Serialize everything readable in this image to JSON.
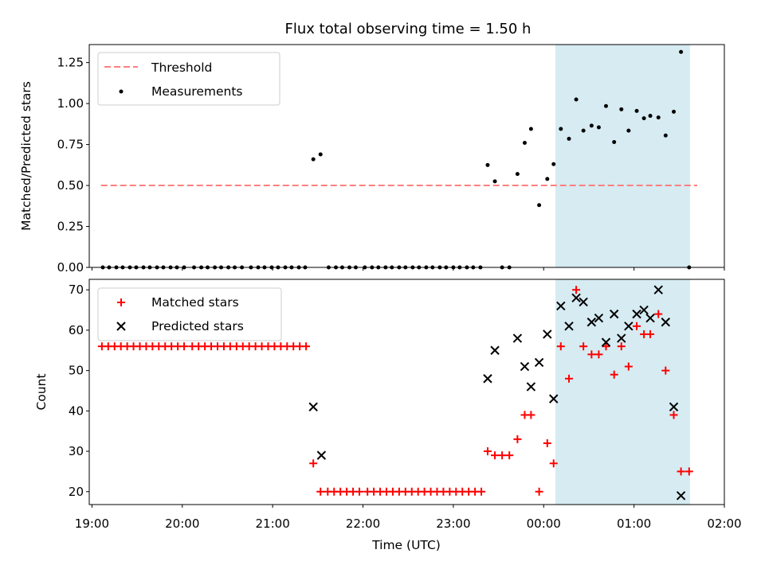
{
  "chart_data": {
    "title": "Flux total observing time = 1.50 h",
    "shaded_region": {
      "x_start": 0.13,
      "x_end": 1.62,
      "color": "#add8e6"
    },
    "colors": {
      "threshold": "#ff7f7f",
      "measurement": "#000000",
      "matched": "#ff0000",
      "predicted": "#000000"
    },
    "x_axis": {
      "label": "Time (UTC)",
      "range": [
        -5.03,
        2.0
      ],
      "ticks": [
        {
          "value": -5,
          "label": "19:00"
        },
        {
          "value": -4,
          "label": "20:00"
        },
        {
          "value": -3,
          "label": "21:00"
        },
        {
          "value": -2,
          "label": "22:00"
        },
        {
          "value": -1,
          "label": "23:00"
        },
        {
          "value": 0,
          "label": "00:00"
        },
        {
          "value": 1,
          "label": "01:00"
        },
        {
          "value": 2,
          "label": "02:00"
        }
      ]
    },
    "top": {
      "type": "scatter",
      "ylabel": "Matched/Predicted stars",
      "ylim": [
        0,
        1.36
      ],
      "yticks": [
        "0.00",
        "0.25",
        "0.50",
        "0.75",
        "1.00",
        "1.25"
      ],
      "threshold": {
        "label": "Threshold",
        "y": 0.5,
        "x_start": -4.9,
        "x_end": 1.7
      },
      "measurements_label": "Measurements",
      "measurements": [
        [
          -4.88,
          0
        ],
        [
          -4.81,
          0
        ],
        [
          -4.73,
          0
        ],
        [
          -4.66,
          0
        ],
        [
          -4.58,
          0
        ],
        [
          -4.51,
          0
        ],
        [
          -4.43,
          0
        ],
        [
          -4.36,
          0
        ],
        [
          -4.28,
          0
        ],
        [
          -4.21,
          0
        ],
        [
          -4.13,
          0
        ],
        [
          -4.06,
          0
        ],
        [
          -3.98,
          0
        ],
        [
          -3.87,
          0
        ],
        [
          -3.79,
          0
        ],
        [
          -3.72,
          0
        ],
        [
          -3.64,
          0
        ],
        [
          -3.57,
          0
        ],
        [
          -3.49,
          0
        ],
        [
          -3.42,
          0
        ],
        [
          -3.34,
          0
        ],
        [
          -3.24,
          0
        ],
        [
          -3.16,
          0
        ],
        [
          -3.09,
          0
        ],
        [
          -3.01,
          0
        ],
        [
          -2.94,
          0
        ],
        [
          -2.86,
          0
        ],
        [
          -2.79,
          0
        ],
        [
          -2.71,
          0
        ],
        [
          -2.64,
          0
        ],
        [
          -2.55,
          0.66
        ],
        [
          -2.47,
          0.69
        ],
        [
          -2.38,
          0
        ],
        [
          -2.3,
          0
        ],
        [
          -2.23,
          0
        ],
        [
          -2.15,
          0
        ],
        [
          -2.08,
          0
        ],
        [
          -1.98,
          0
        ],
        [
          -1.9,
          0
        ],
        [
          -1.83,
          0
        ],
        [
          -1.75,
          0
        ],
        [
          -1.68,
          0
        ],
        [
          -1.6,
          0
        ],
        [
          -1.53,
          0
        ],
        [
          -1.45,
          0
        ],
        [
          -1.38,
          0
        ],
        [
          -1.3,
          0
        ],
        [
          -1.23,
          0
        ],
        [
          -1.15,
          0
        ],
        [
          -1.08,
          0
        ],
        [
          -1.0,
          0
        ],
        [
          -0.93,
          0
        ],
        [
          -0.85,
          0
        ],
        [
          -0.78,
          0
        ],
        [
          -0.7,
          0
        ],
        [
          -0.62,
          0.625
        ],
        [
          -0.54,
          0.525
        ],
        [
          -0.46,
          0
        ],
        [
          -0.38,
          0
        ],
        [
          -0.29,
          0.57
        ],
        [
          -0.21,
          0.76
        ],
        [
          -0.14,
          0.845
        ],
        [
          -0.05,
          0.38
        ],
        [
          0.04,
          0.54
        ],
        [
          0.11,
          0.63
        ],
        [
          0.19,
          0.845
        ],
        [
          0.28,
          0.785
        ],
        [
          0.36,
          1.025
        ],
        [
          0.44,
          0.835
        ],
        [
          0.53,
          0.865
        ],
        [
          0.61,
          0.855
        ],
        [
          0.69,
          0.985
        ],
        [
          0.78,
          0.765
        ],
        [
          0.86,
          0.965
        ],
        [
          0.94,
          0.835
        ],
        [
          1.03,
          0.955
        ],
        [
          1.11,
          0.91
        ],
        [
          1.18,
          0.925
        ],
        [
          1.27,
          0.915
        ],
        [
          1.35,
          0.805
        ],
        [
          1.44,
          0.95
        ],
        [
          1.52,
          1.315
        ],
        [
          1.61,
          0
        ]
      ]
    },
    "bottom": {
      "type": "scatter",
      "ylabel": "Count",
      "ylim": [
        16.8,
        72.6
      ],
      "yticks": [
        "20",
        "30",
        "40",
        "50",
        "60",
        "70"
      ],
      "matched_label": "Matched stars",
      "predicted_label": "Predicted stars",
      "matched": [
        [
          -4.89,
          56
        ],
        [
          -4.82,
          56
        ],
        [
          -4.75,
          56
        ],
        [
          -4.68,
          56
        ],
        [
          -4.61,
          56
        ],
        [
          -4.54,
          56
        ],
        [
          -4.47,
          56
        ],
        [
          -4.4,
          56
        ],
        [
          -4.33,
          56
        ],
        [
          -4.26,
          56
        ],
        [
          -4.19,
          56
        ],
        [
          -4.12,
          56
        ],
        [
          -4.05,
          56
        ],
        [
          -3.98,
          56
        ],
        [
          -3.89,
          56
        ],
        [
          -3.82,
          56
        ],
        [
          -3.75,
          56
        ],
        [
          -3.68,
          56
        ],
        [
          -3.61,
          56
        ],
        [
          -3.54,
          56
        ],
        [
          -3.47,
          56
        ],
        [
          -3.4,
          56
        ],
        [
          -3.33,
          56
        ],
        [
          -3.26,
          56
        ],
        [
          -3.19,
          56
        ],
        [
          -3.12,
          56
        ],
        [
          -3.05,
          56
        ],
        [
          -2.98,
          56
        ],
        [
          -2.91,
          56
        ],
        [
          -2.84,
          56
        ],
        [
          -2.77,
          56
        ],
        [
          -2.7,
          56
        ],
        [
          -2.63,
          56
        ],
        [
          -2.55,
          27
        ],
        [
          -2.47,
          20
        ],
        [
          -2.39,
          20
        ],
        [
          -2.32,
          20
        ],
        [
          -2.25,
          20
        ],
        [
          -2.18,
          20
        ],
        [
          -2.11,
          20
        ],
        [
          -2.04,
          20
        ],
        [
          -1.95,
          20
        ],
        [
          -1.88,
          20
        ],
        [
          -1.81,
          20
        ],
        [
          -1.74,
          20
        ],
        [
          -1.67,
          20
        ],
        [
          -1.6,
          20
        ],
        [
          -1.53,
          20
        ],
        [
          -1.46,
          20
        ],
        [
          -1.39,
          20
        ],
        [
          -1.32,
          20
        ],
        [
          -1.25,
          20
        ],
        [
          -1.18,
          20
        ],
        [
          -1.11,
          20
        ],
        [
          -1.04,
          20
        ],
        [
          -0.97,
          20
        ],
        [
          -0.9,
          20
        ],
        [
          -0.83,
          20
        ],
        [
          -0.76,
          20
        ],
        [
          -0.69,
          20
        ],
        [
          -0.62,
          30
        ],
        [
          -0.54,
          29
        ],
        [
          -0.46,
          29
        ],
        [
          -0.38,
          29
        ],
        [
          -0.29,
          33
        ],
        [
          -0.21,
          39
        ],
        [
          -0.14,
          39
        ],
        [
          -0.05,
          20
        ],
        [
          0.04,
          32
        ],
        [
          0.11,
          27
        ],
        [
          0.19,
          56
        ],
        [
          0.28,
          48
        ],
        [
          0.36,
          70
        ],
        [
          0.44,
          56
        ],
        [
          0.53,
          54
        ],
        [
          0.61,
          54
        ],
        [
          0.69,
          56
        ],
        [
          0.78,
          49
        ],
        [
          0.86,
          56
        ],
        [
          0.94,
          51
        ],
        [
          1.03,
          61
        ],
        [
          1.11,
          59
        ],
        [
          1.18,
          59
        ],
        [
          1.27,
          64
        ],
        [
          1.35,
          50
        ],
        [
          1.44,
          39
        ],
        [
          1.52,
          25
        ],
        [
          1.61,
          25
        ]
      ],
      "predicted": [
        [
          -2.55,
          41
        ],
        [
          -2.46,
          29
        ],
        [
          -0.62,
          48
        ],
        [
          -0.54,
          55
        ],
        [
          -0.29,
          58
        ],
        [
          -0.21,
          51
        ],
        [
          -0.14,
          46
        ],
        [
          -0.05,
          52
        ],
        [
          0.04,
          59
        ],
        [
          0.11,
          43
        ],
        [
          0.19,
          66
        ],
        [
          0.28,
          61
        ],
        [
          0.36,
          68
        ],
        [
          0.44,
          67
        ],
        [
          0.53,
          62
        ],
        [
          0.61,
          63
        ],
        [
          0.69,
          57
        ],
        [
          0.78,
          64
        ],
        [
          0.86,
          58
        ],
        [
          0.94,
          61
        ],
        [
          1.03,
          64
        ],
        [
          1.11,
          65
        ],
        [
          1.18,
          63
        ],
        [
          1.27,
          70
        ],
        [
          1.35,
          62
        ],
        [
          1.44,
          41
        ],
        [
          1.52,
          19
        ]
      ]
    }
  }
}
